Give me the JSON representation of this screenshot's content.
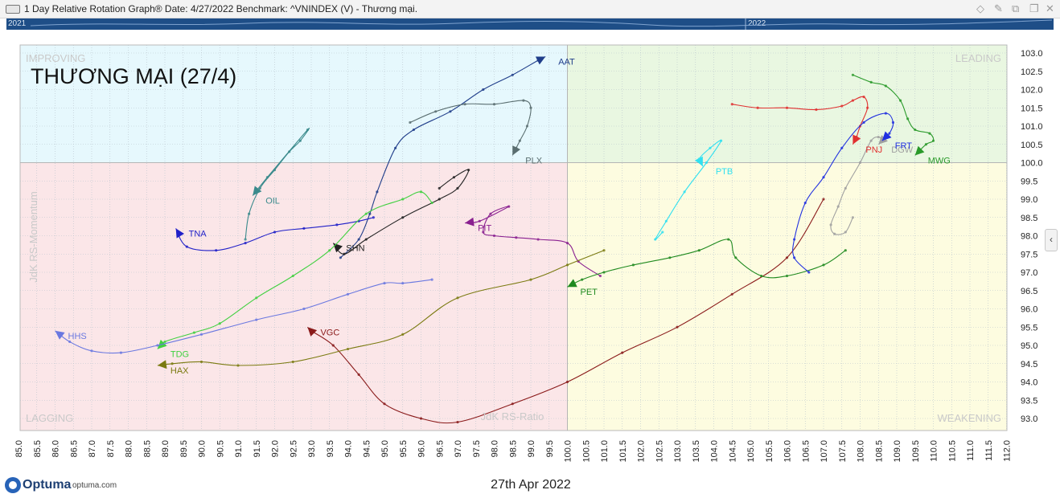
{
  "window": {
    "title": "1 Day Relative Rotation Graph®    Date: 4/27/2022  Benchmark:  ^VNINDEX (V) - Thương mại."
  },
  "timeline": {
    "start_label": "2021",
    "end_label": "2022"
  },
  "footer": {
    "brand": "Optuma",
    "url": "optuma.com",
    "date": "27th Apr 2022"
  },
  "chart_data": {
    "type": "scatter",
    "title": "THƯƠNG MẠI (27/4)",
    "xlabel": "JdK RS-Ratio",
    "ylabel": "JdK RS-Momentum",
    "xlim": [
      85.0,
      112.0
    ],
    "ylim": [
      92.8,
      103.25
    ],
    "center": [
      100.0,
      100.0
    ],
    "x_ticks": [
      "85.0",
      "85.5",
      "86.0",
      "86.5",
      "87.0",
      "87.5",
      "88.0",
      "88.5",
      "89.0",
      "89.5",
      "90.0",
      "90.5",
      "91.0",
      "91.5",
      "92.0",
      "92.5",
      "93.0",
      "93.5",
      "94.0",
      "94.5",
      "95.0",
      "95.5",
      "96.0",
      "96.5",
      "97.0",
      "97.5",
      "98.0",
      "98.5",
      "99.0",
      "99.5",
      "100.0",
      "100.5",
      "101.0",
      "101.5",
      "102.0",
      "102.5",
      "103.0",
      "103.5",
      "104.0",
      "104.5",
      "105.0",
      "105.5",
      "106.0",
      "106.5",
      "107.0",
      "107.5",
      "108.0",
      "108.5",
      "109.0",
      "109.5",
      "110.0",
      "110.5",
      "111.0",
      "111.5",
      "112.0"
    ],
    "y_ticks": [
      "93.0",
      "93.5",
      "94.0",
      "94.5",
      "95.0",
      "95.5",
      "96.0",
      "96.5",
      "97.0",
      "97.5",
      "98.0",
      "98.5",
      "99.0",
      "99.5",
      "100.0",
      "100.5",
      "101.0",
      "101.5",
      "102.0",
      "102.5",
      "103.0"
    ],
    "quadrants": {
      "improving": "IMPROVING",
      "leading": "LEADING",
      "lagging": "LAGGING",
      "weakening": "WEAKENING"
    },
    "quadrant_colors": {
      "improving": "#e6f8fd",
      "leading": "#e9f7e1",
      "lagging": "#fbe6e8",
      "weakening": "#fdfce0"
    },
    "grid": true,
    "series": [
      {
        "name": "AAT",
        "color": "#1f3d8a",
        "points": [
          [
            93.8,
            97.4
          ],
          [
            94.3,
            97.9
          ],
          [
            94.6,
            98.6
          ],
          [
            94.8,
            99.2
          ],
          [
            95.3,
            100.4
          ],
          [
            95.8,
            100.9
          ],
          [
            96.8,
            101.4
          ],
          [
            97.7,
            102.0
          ],
          [
            98.5,
            102.4
          ],
          [
            99.2,
            102.8
          ],
          [
            99.4,
            102.9
          ]
        ]
      },
      {
        "name": "PLX",
        "color": "#5a6e70",
        "points": [
          [
            95.7,
            101.1
          ],
          [
            96.4,
            101.4
          ],
          [
            97.2,
            101.6
          ],
          [
            98.0,
            101.6
          ],
          [
            98.8,
            101.7
          ],
          [
            99.0,
            101.5
          ],
          [
            98.9,
            101.0
          ],
          [
            98.7,
            100.6
          ],
          [
            98.6,
            100.4
          ],
          [
            98.5,
            100.2
          ]
        ]
      },
      {
        "name": "OIL",
        "color": "#3a8a8c",
        "points": [
          [
            91.2,
            97.9
          ],
          [
            91.3,
            98.6
          ],
          [
            91.6,
            99.3
          ],
          [
            92.0,
            99.8
          ],
          [
            92.4,
            100.3
          ],
          [
            92.7,
            100.6
          ],
          [
            92.9,
            100.9
          ],
          [
            91.8,
            99.6
          ],
          [
            91.4,
            99.1
          ]
        ]
      },
      {
        "name": "TNA",
        "color": "#2020c8",
        "points": [
          [
            94.7,
            98.5
          ],
          [
            94.3,
            98.4
          ],
          [
            93.7,
            98.3
          ],
          [
            92.8,
            98.2
          ],
          [
            92.0,
            98.1
          ],
          [
            91.2,
            97.8
          ],
          [
            90.4,
            97.6
          ],
          [
            89.6,
            97.7
          ],
          [
            89.3,
            98.2
          ]
        ]
      },
      {
        "name": "SHN",
        "color": "#222222",
        "points": [
          [
            96.5,
            99.3
          ],
          [
            96.9,
            99.6
          ],
          [
            97.3,
            99.8
          ],
          [
            97.0,
            99.3
          ],
          [
            96.5,
            99.0
          ],
          [
            95.5,
            98.5
          ],
          [
            94.5,
            97.9
          ],
          [
            93.9,
            97.5
          ],
          [
            93.6,
            97.8
          ]
        ]
      },
      {
        "name": "PIT",
        "color": "#8a2090",
        "points": [
          [
            100.9,
            96.9
          ],
          [
            100.3,
            97.3
          ],
          [
            100.0,
            97.8
          ],
          [
            99.2,
            97.9
          ],
          [
            98.6,
            97.95
          ],
          [
            98.0,
            98.0
          ],
          [
            97.7,
            98.1
          ],
          [
            97.9,
            98.6
          ],
          [
            98.4,
            98.8
          ],
          [
            97.6,
            98.4
          ],
          [
            97.2,
            98.35
          ]
        ]
      },
      {
        "name": "TDG",
        "color": "#40d040",
        "points": [
          [
            96.3,
            98.9
          ],
          [
            96.0,
            99.2
          ],
          [
            95.5,
            99.0
          ],
          [
            94.5,
            98.6
          ],
          [
            93.5,
            97.6
          ],
          [
            92.5,
            96.9
          ],
          [
            91.5,
            96.3
          ],
          [
            90.5,
            95.6
          ],
          [
            89.8,
            95.35
          ],
          [
            89.0,
            95.1
          ],
          [
            88.8,
            94.9
          ]
        ]
      },
      {
        "name": "HHS",
        "color": "#6a78e0",
        "points": [
          [
            96.3,
            96.8
          ],
          [
            95.5,
            96.7
          ],
          [
            95.0,
            96.7
          ],
          [
            94.0,
            96.4
          ],
          [
            92.8,
            96.0
          ],
          [
            91.5,
            95.7
          ],
          [
            90.0,
            95.3
          ],
          [
            88.8,
            95.0
          ],
          [
            87.8,
            94.8
          ],
          [
            87.0,
            94.85
          ],
          [
            86.4,
            95.1
          ],
          [
            86.0,
            95.4
          ]
        ]
      },
      {
        "name": "VGC",
        "color": "#8a1a1a",
        "points": [
          [
            107.0,
            99.0
          ],
          [
            106.0,
            97.4
          ],
          [
            104.5,
            96.4
          ],
          [
            103.0,
            95.5
          ],
          [
            101.5,
            94.8
          ],
          [
            100.0,
            94.0
          ],
          [
            98.5,
            93.4
          ],
          [
            97.0,
            92.9
          ],
          [
            96.0,
            93.0
          ],
          [
            95.0,
            93.4
          ],
          [
            94.3,
            94.2
          ],
          [
            93.6,
            95.0
          ],
          [
            93.0,
            95.4
          ],
          [
            92.9,
            95.5
          ]
        ]
      },
      {
        "name": "HAX",
        "color": "#7a7a10",
        "points": [
          [
            101.0,
            97.6
          ],
          [
            100.0,
            97.2
          ],
          [
            99.0,
            96.8
          ],
          [
            97.0,
            96.3
          ],
          [
            95.5,
            95.3
          ],
          [
            94.0,
            94.9
          ],
          [
            92.5,
            94.55
          ],
          [
            91.0,
            94.45
          ],
          [
            90.0,
            94.55
          ],
          [
            89.2,
            94.5
          ],
          [
            88.8,
            94.45
          ]
        ]
      },
      {
        "name": "PET",
        "color": "#1f8a1f",
        "points": [
          [
            107.6,
            97.6
          ],
          [
            107.0,
            97.2
          ],
          [
            106.0,
            96.9
          ],
          [
            105.3,
            96.9
          ],
          [
            104.6,
            97.4
          ],
          [
            104.4,
            97.9
          ],
          [
            103.6,
            97.6
          ],
          [
            102.8,
            97.4
          ],
          [
            101.8,
            97.2
          ],
          [
            101.0,
            97.0
          ],
          [
            100.4,
            96.8
          ],
          [
            100.0,
            96.6
          ]
        ]
      },
      {
        "name": "PTB",
        "color": "#30e0f0",
        "points": [
          [
            102.6,
            98.1
          ],
          [
            102.4,
            97.9
          ],
          [
            102.7,
            98.4
          ],
          [
            103.2,
            99.2
          ],
          [
            103.8,
            100.0
          ],
          [
            104.2,
            100.6
          ],
          [
            103.9,
            100.4
          ],
          [
            103.6,
            100.1
          ],
          [
            103.7,
            99.9
          ]
        ]
      },
      {
        "name": "DGW",
        "color": "#a0a0a0",
        "points": [
          [
            107.8,
            98.5
          ],
          [
            107.6,
            98.1
          ],
          [
            107.3,
            98.05
          ],
          [
            107.2,
            98.3
          ],
          [
            107.4,
            98.8
          ],
          [
            107.6,
            99.3
          ],
          [
            108.0,
            100.0
          ],
          [
            108.3,
            100.6
          ],
          [
            108.5,
            100.7
          ],
          [
            108.6,
            100.6
          ],
          [
            108.5,
            100.5
          ]
        ]
      },
      {
        "name": "PNJ",
        "color": "#e03030",
        "points": [
          [
            104.5,
            101.6
          ],
          [
            105.2,
            101.5
          ],
          [
            106.0,
            101.5
          ],
          [
            106.8,
            101.45
          ],
          [
            107.5,
            101.55
          ],
          [
            107.8,
            101.7
          ],
          [
            108.1,
            101.8
          ],
          [
            108.2,
            101.5
          ],
          [
            108.0,
            101.0
          ],
          [
            107.9,
            100.7
          ],
          [
            107.8,
            100.5
          ]
        ]
      },
      {
        "name": "FRT",
        "color": "#2030e0",
        "points": [
          [
            106.6,
            97.0
          ],
          [
            106.2,
            97.4
          ],
          [
            106.2,
            97.9
          ],
          [
            106.5,
            98.9
          ],
          [
            107.0,
            99.6
          ],
          [
            107.5,
            100.4
          ],
          [
            108.1,
            101.1
          ],
          [
            108.7,
            101.35
          ],
          [
            108.9,
            101.1
          ],
          [
            108.8,
            100.8
          ],
          [
            108.6,
            100.6
          ]
        ]
      },
      {
        "name": "MWG",
        "color": "#2a9a2a",
        "points": [
          [
            107.8,
            102.4
          ],
          [
            108.3,
            102.2
          ],
          [
            108.7,
            102.1
          ],
          [
            109.1,
            101.7
          ],
          [
            109.3,
            101.2
          ],
          [
            109.5,
            100.9
          ],
          [
            109.9,
            100.8
          ],
          [
            110.0,
            100.6
          ],
          [
            109.8,
            100.5
          ],
          [
            109.5,
            100.2
          ]
        ]
      }
    ]
  }
}
